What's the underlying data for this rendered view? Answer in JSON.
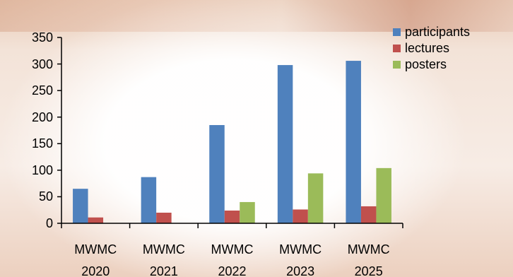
{
  "chart_data": {
    "type": "bar",
    "categories": [
      "MWMC 2020",
      "MWMC 2021",
      "MWMC 2022",
      "MWMC 2023",
      "MWMC 2025"
    ],
    "series": [
      {
        "name": "participants",
        "color": "#4f81bd",
        "values": [
          65,
          87,
          185,
          298,
          306
        ]
      },
      {
        "name": "lectures",
        "color": "#c0504d",
        "values": [
          11,
          20,
          24,
          26,
          32
        ]
      },
      {
        "name": "posters",
        "color": "#9bbb59",
        "values": [
          0,
          0,
          40,
          94,
          104
        ]
      }
    ],
    "ylim": [
      0,
      350
    ],
    "yticks": [
      0,
      50,
      100,
      150,
      200,
      250,
      300,
      350
    ],
    "grid": false,
    "legend": "top-right"
  }
}
